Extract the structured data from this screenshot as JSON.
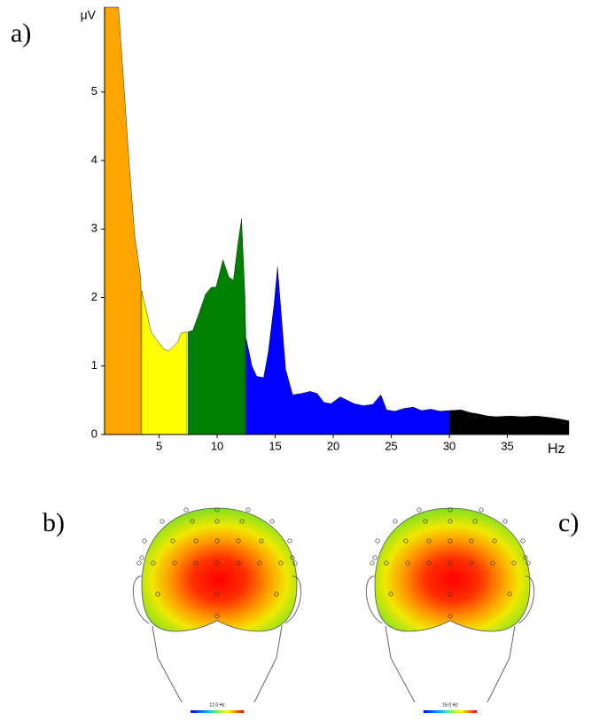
{
  "chart_data": {
    "type": "area",
    "y_label": "μV",
    "x_label": "Hz",
    "panel_label": "a)",
    "xlim": [
      0.3,
      40.3
    ],
    "ylim": [
      0,
      6.24
    ],
    "xticks": [
      5,
      10,
      15,
      20,
      25,
      30,
      35
    ],
    "yticks": [
      0,
      1,
      2,
      3,
      4,
      5
    ],
    "series": [
      {
        "color": "#ffa500",
        "x": [
          0.3,
          1.5,
          2.0,
          2.4,
          2.9,
          3.4
        ],
        "values": [
          6.24,
          6.24,
          5.0,
          4.0,
          2.9,
          2.3
        ]
      },
      {
        "color": "#ffff00",
        "x": [
          3.5,
          3.9,
          4.3,
          4.7,
          5.4,
          5.8,
          6.2,
          6.6,
          6.9,
          7.4
        ],
        "values": [
          2.1,
          1.8,
          1.5,
          1.4,
          1.25,
          1.22,
          1.28,
          1.35,
          1.48,
          1.5
        ]
      },
      {
        "color": "#008000",
        "x": [
          7.5,
          7.9,
          8.5,
          9.0,
          9.5,
          9.9,
          10.5,
          11.0,
          11.4,
          11.8,
          12.1,
          12.4
        ],
        "values": [
          1.5,
          1.52,
          1.8,
          2.05,
          2.15,
          2.15,
          2.55,
          2.3,
          2.25,
          2.8,
          3.15,
          2.0
        ]
      },
      {
        "color": "#0000ff",
        "x": [
          12.5,
          13.0,
          13.4,
          14.0,
          14.4,
          14.9,
          15.2,
          15.5,
          15.9,
          16.5,
          17.3,
          18.0,
          18.6,
          19.2,
          19.8,
          20.6,
          21.2,
          21.8,
          22.6,
          23.4,
          24.1,
          24.6,
          25.3,
          26.1,
          26.9,
          27.6,
          28.4,
          29.2,
          29.9
        ],
        "values": [
          1.4,
          1.0,
          0.85,
          0.83,
          1.2,
          1.9,
          2.45,
          1.8,
          0.95,
          0.58,
          0.6,
          0.63,
          0.6,
          0.47,
          0.45,
          0.55,
          0.5,
          0.45,
          0.42,
          0.44,
          0.58,
          0.36,
          0.34,
          0.38,
          0.4,
          0.35,
          0.37,
          0.34,
          0.35
        ]
      },
      {
        "color": "#000000",
        "x": [
          30.0,
          31.0,
          31.8,
          32.5,
          33.3,
          34.0,
          35.2,
          36.3,
          37.5,
          38.6,
          39.4,
          40.3
        ],
        "values": [
          0.35,
          0.36,
          0.32,
          0.3,
          0.27,
          0.26,
          0.27,
          0.26,
          0.27,
          0.25,
          0.23,
          0.2
        ]
      }
    ]
  },
  "topomaps": [
    {
      "label": "b)",
      "caption": "12.0 Hz"
    },
    {
      "label": "c)",
      "caption": "15.0 Hz"
    }
  ]
}
